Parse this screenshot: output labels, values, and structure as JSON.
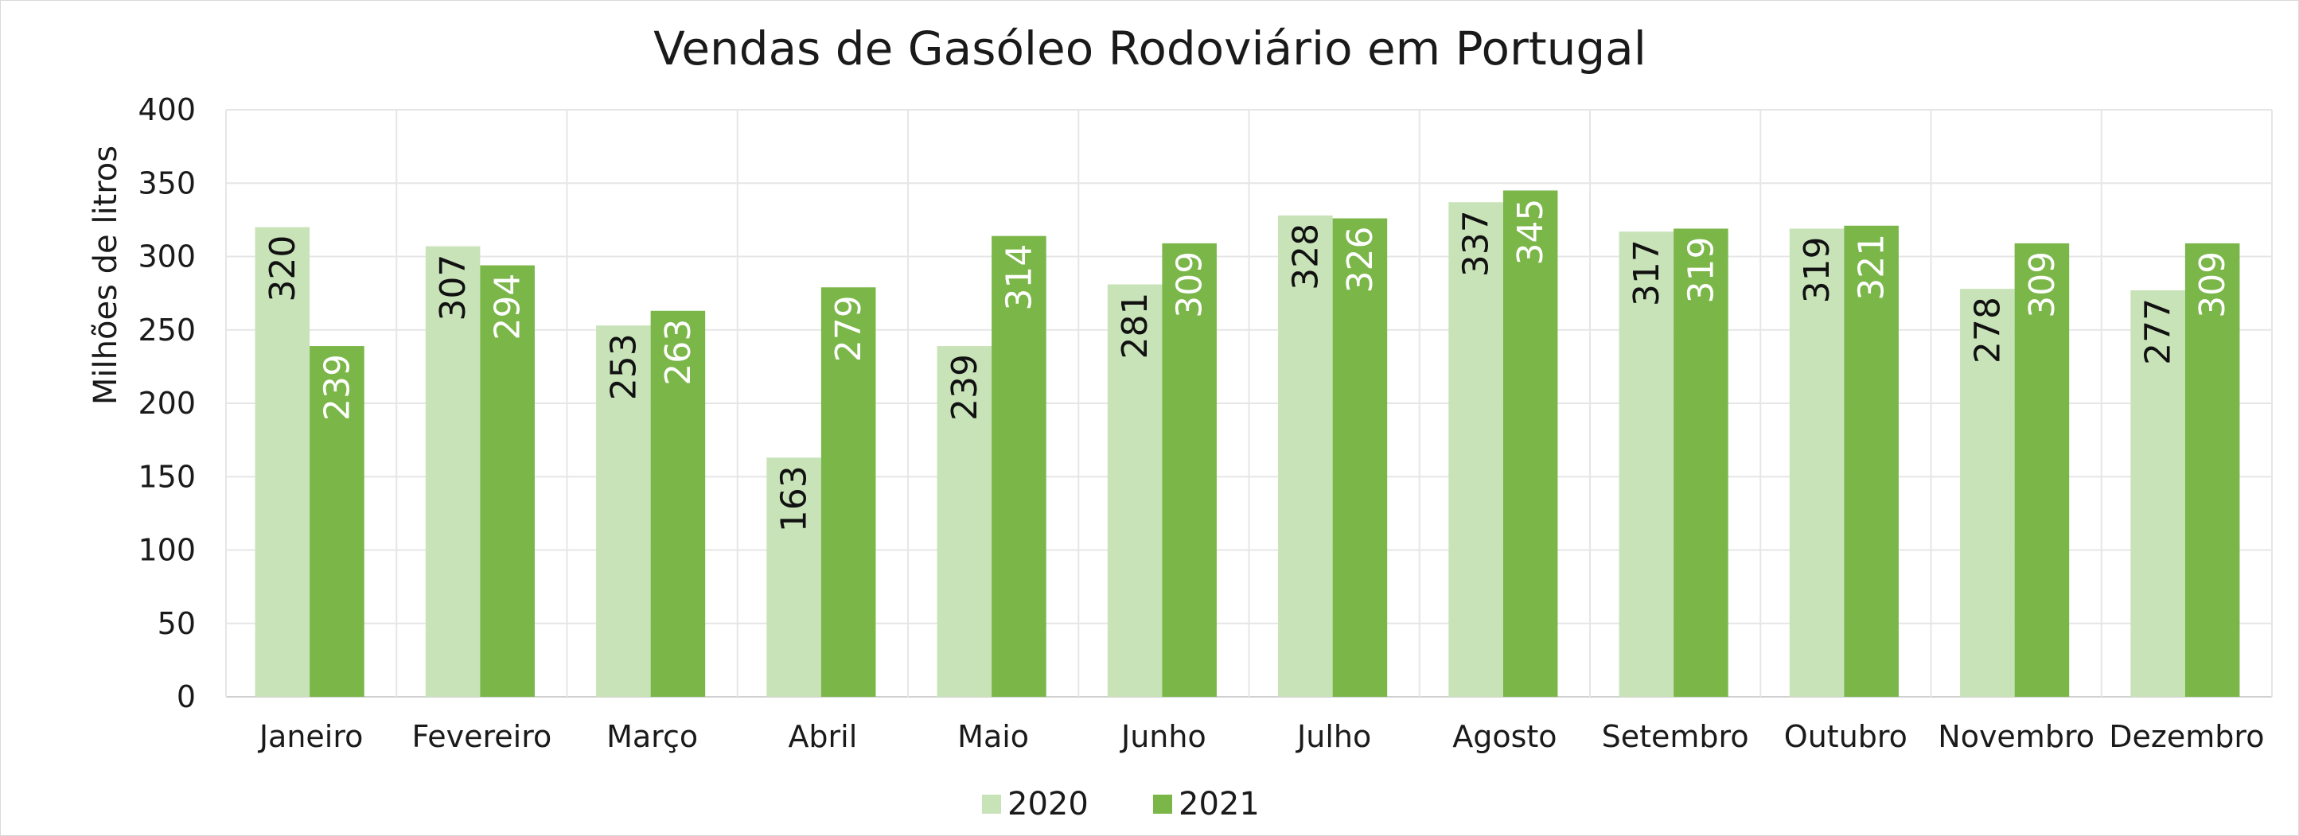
{
  "chart_data": {
    "type": "bar",
    "title": "Vendas de Gasóleo Rodoviário em Portugal",
    "ylabel": "Milhões de litros",
    "xlabel": "",
    "ylim": [
      0,
      400
    ],
    "yticks": [
      0,
      50,
      100,
      150,
      200,
      250,
      300,
      350,
      400
    ],
    "grid": true,
    "legend_position": "bottom",
    "categories": [
      "Janeiro",
      "Fevereiro",
      "Março",
      "Abril",
      "Maio",
      "Junho",
      "Julho",
      "Agosto",
      "Setembro",
      "Outubro",
      "Novembro",
      "Dezembro"
    ],
    "series": [
      {
        "name": "2020",
        "color": "#c9e3b9",
        "label_color": "#111111",
        "values": [
          320,
          307,
          253,
          163,
          239,
          281,
          328,
          337,
          317,
          319,
          278,
          277
        ]
      },
      {
        "name": "2021",
        "color": "#7ab648",
        "label_color": "#ffffff",
        "values": [
          239,
          294,
          263,
          279,
          314,
          309,
          326,
          345,
          319,
          321,
          309,
          309
        ]
      }
    ]
  }
}
